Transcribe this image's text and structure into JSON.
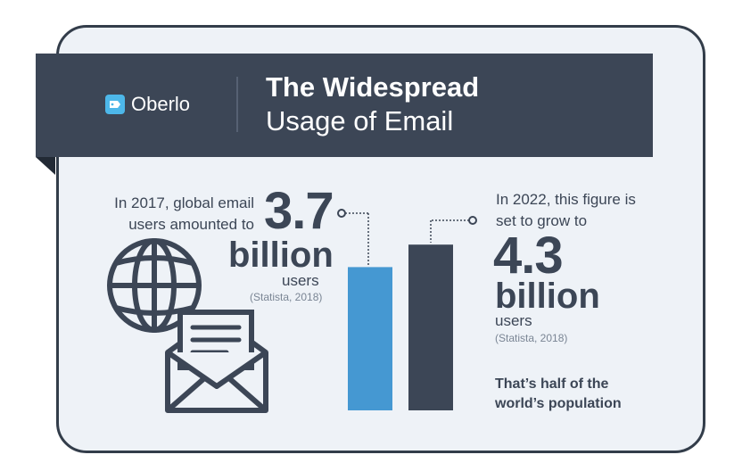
{
  "brand": {
    "name": "Oberlo",
    "icon": "oberlo-tag-icon",
    "accent": "#4db7e9"
  },
  "title": {
    "line1": "The Widespread",
    "line2": "Usage of Email"
  },
  "left_stat": {
    "intro_line1": "In 2017, global email",
    "intro_line2": "users amounted to",
    "number": "3.7",
    "unit": "billion",
    "label": "users",
    "source": "(Statista, 2018)"
  },
  "right_stat": {
    "intro_line1": "In 2022, this figure is",
    "intro_line2": "set to grow to",
    "number": "4.3",
    "unit": "billion",
    "label": "users",
    "source": "(Statista, 2018)",
    "note_line1": "That’s half of the",
    "note_line2": "world’s population"
  },
  "chart_data": {
    "type": "bar",
    "categories": [
      "2017",
      "2022"
    ],
    "values": [
      3.7,
      4.3
    ],
    "colors": [
      "#4598d2",
      "#3c4656"
    ],
    "title": "",
    "xlabel": "",
    "ylabel": ""
  },
  "icons": {
    "globe": "globe-icon",
    "envelope": "envelope-icon"
  },
  "colors": {
    "dark": "#3c4656",
    "card_bg": "#eef2f7",
    "bar_2017": "#4598d2",
    "bar_2022": "#3c4656"
  }
}
